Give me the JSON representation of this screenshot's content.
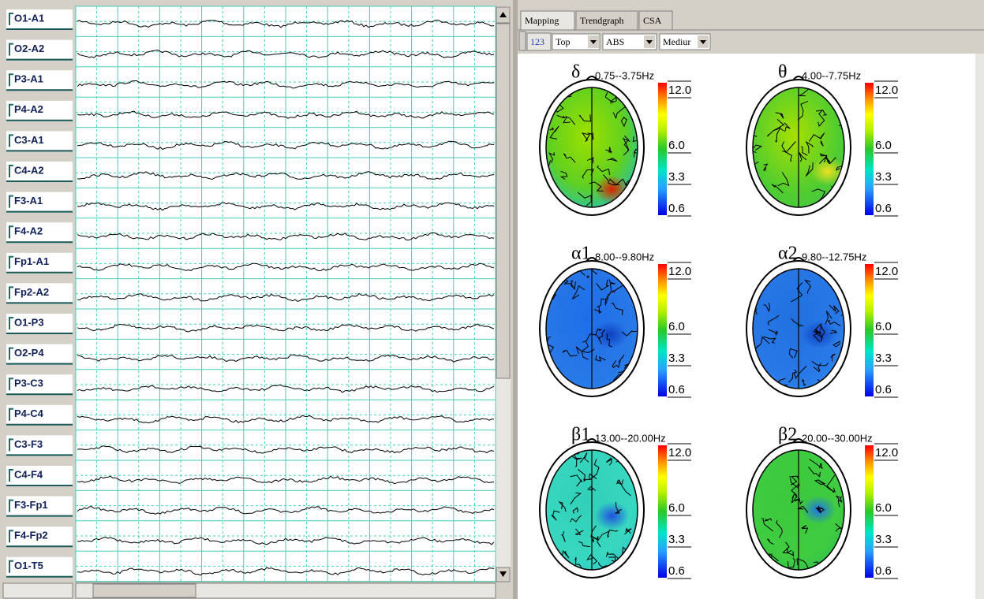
{
  "channels": [
    "O1-A1",
    "O2-A2",
    "P3-A1",
    "P4-A2",
    "C3-A1",
    "C4-A2",
    "F3-A1",
    "F4-A2",
    "Fp1-A1",
    "Fp2-A2",
    "O1-P3",
    "O2-P4",
    "P3-C3",
    "P4-C4",
    "C3-F3",
    "C4-F4",
    "F3-Fp1",
    "F4-Fp2",
    "O1-T5"
  ],
  "tabs": [
    "Mapping",
    "Trendgraph",
    "CSA"
  ],
  "toolbar": {
    "icon": "123",
    "view": "Top",
    "mode": "ABS",
    "size": "Mediur"
  },
  "maps": [
    {
      "symbol": "δ",
      "range": "0.75--3.75Hz"
    },
    {
      "symbol": "θ",
      "range": "4.00--7.75Hz"
    },
    {
      "symbol": "α1",
      "range": "8.00--9.80Hz"
    },
    {
      "symbol": "α2",
      "range": "9.80--12.75Hz"
    },
    {
      "symbol": "β1",
      "range": "13.00--20.00Hz"
    },
    {
      "symbol": "β2",
      "range": "20.00--30.00Hz"
    }
  ],
  "scale_labels": [
    "12.0",
    "6.0",
    "3.3",
    "0.6"
  ]
}
